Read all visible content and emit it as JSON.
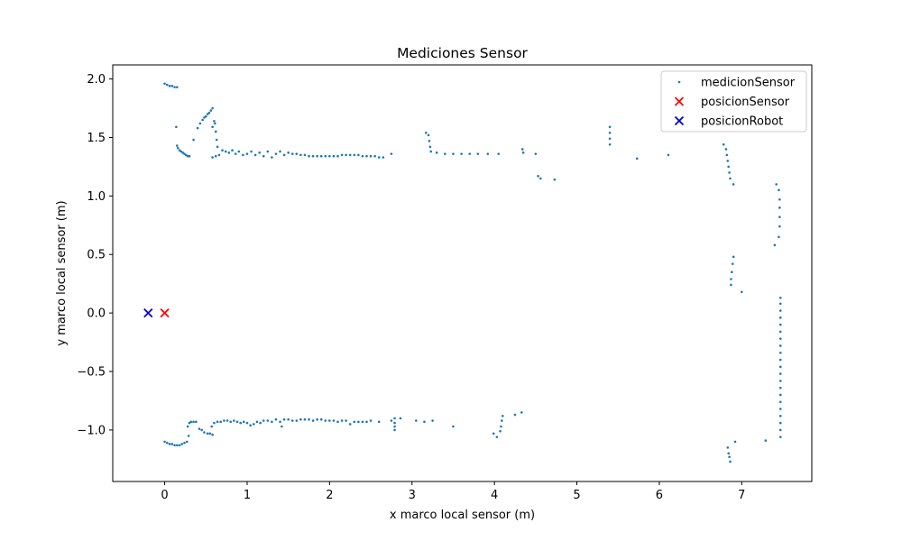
{
  "chart_data": {
    "type": "scatter",
    "title": "Mediciones Sensor",
    "xlabel": "x marco local sensor (m)",
    "ylabel": "y marco local sensor (m)",
    "xlim": [
      -0.63,
      7.85
    ],
    "ylim": [
      -1.44,
      2.12
    ],
    "xticks": [
      0,
      1,
      2,
      3,
      4,
      5,
      6,
      7
    ],
    "xtick_labels": [
      "0",
      "1",
      "2",
      "3",
      "4",
      "5",
      "6",
      "7"
    ],
    "yticks": [
      -1.0,
      -0.5,
      0.0,
      0.5,
      1.0,
      1.5,
      2.0
    ],
    "ytick_labels": [
      "−1.0",
      "−0.5",
      "0.0",
      "0.5",
      "1.0",
      "1.5",
      "2.0"
    ],
    "grid": false,
    "legend_position": "top-right",
    "series": [
      {
        "name": "medicionSensor",
        "marker": "dot",
        "color": "#1f77b4",
        "points": [
          [
            0.0,
            1.96
          ],
          [
            0.03,
            1.95
          ],
          [
            0.06,
            1.94
          ],
          [
            0.09,
            1.94
          ],
          [
            0.12,
            1.93
          ],
          [
            0.15,
            1.93
          ],
          [
            0.14,
            1.59
          ],
          [
            0.15,
            1.43
          ],
          [
            0.16,
            1.41
          ],
          [
            0.18,
            1.39
          ],
          [
            0.2,
            1.38
          ],
          [
            0.22,
            1.37
          ],
          [
            0.24,
            1.36
          ],
          [
            0.26,
            1.35
          ],
          [
            0.28,
            1.34
          ],
          [
            0.3,
            1.34
          ],
          [
            0.35,
            1.48
          ],
          [
            0.4,
            1.58
          ],
          [
            0.43,
            1.62
          ],
          [
            0.46,
            1.65
          ],
          [
            0.48,
            1.67
          ],
          [
            0.5,
            1.68
          ],
          [
            0.52,
            1.7
          ],
          [
            0.54,
            1.71
          ],
          [
            0.56,
            1.73
          ],
          [
            0.58,
            1.75
          ],
          [
            0.58,
            1.59
          ],
          [
            0.6,
            1.64
          ],
          [
            0.61,
            1.62
          ],
          [
            0.62,
            1.55
          ],
          [
            0.63,
            1.48
          ],
          [
            0.64,
            1.42
          ],
          [
            0.58,
            1.33
          ],
          [
            0.62,
            1.34
          ],
          [
            0.66,
            1.35
          ],
          [
            0.7,
            1.39
          ],
          [
            0.74,
            1.38
          ],
          [
            0.78,
            1.37
          ],
          [
            0.82,
            1.39
          ],
          [
            0.86,
            1.36
          ],
          [
            0.9,
            1.38
          ],
          [
            0.95,
            1.35
          ],
          [
            1.0,
            1.36
          ],
          [
            1.05,
            1.38
          ],
          [
            1.1,
            1.35
          ],
          [
            1.15,
            1.37
          ],
          [
            1.2,
            1.34
          ],
          [
            1.25,
            1.38
          ],
          [
            1.3,
            1.33
          ],
          [
            1.35,
            1.36
          ],
          [
            1.4,
            1.38
          ],
          [
            1.45,
            1.35
          ],
          [
            1.5,
            1.37
          ],
          [
            1.55,
            1.36
          ],
          [
            1.6,
            1.36
          ],
          [
            1.65,
            1.35
          ],
          [
            1.7,
            1.35
          ],
          [
            1.75,
            1.34
          ],
          [
            1.8,
            1.34
          ],
          [
            1.85,
            1.34
          ],
          [
            1.9,
            1.34
          ],
          [
            1.95,
            1.34
          ],
          [
            2.0,
            1.34
          ],
          [
            2.05,
            1.34
          ],
          [
            2.1,
            1.34
          ],
          [
            2.15,
            1.35
          ],
          [
            2.2,
            1.35
          ],
          [
            2.25,
            1.35
          ],
          [
            2.3,
            1.35
          ],
          [
            2.35,
            1.35
          ],
          [
            2.4,
            1.34
          ],
          [
            2.45,
            1.34
          ],
          [
            2.5,
            1.34
          ],
          [
            2.55,
            1.34
          ],
          [
            2.6,
            1.33
          ],
          [
            2.65,
            1.33
          ],
          [
            2.75,
            1.36
          ],
          [
            3.17,
            1.54
          ],
          [
            3.2,
            1.52
          ],
          [
            3.21,
            1.47
          ],
          [
            3.22,
            1.42
          ],
          [
            3.23,
            1.38
          ],
          [
            3.3,
            1.37
          ],
          [
            3.4,
            1.36
          ],
          [
            3.5,
            1.36
          ],
          [
            3.6,
            1.36
          ],
          [
            3.7,
            1.36
          ],
          [
            3.8,
            1.36
          ],
          [
            3.92,
            1.36
          ],
          [
            4.05,
            1.36
          ],
          [
            4.34,
            1.4
          ],
          [
            4.35,
            1.37
          ],
          [
            4.5,
            1.36
          ],
          [
            4.53,
            1.17
          ],
          [
            4.56,
            1.15
          ],
          [
            4.73,
            1.14
          ],
          [
            5.4,
            1.59
          ],
          [
            5.4,
            1.54
          ],
          [
            5.4,
            1.49
          ],
          [
            5.4,
            1.44
          ],
          [
            5.73,
            1.32
          ],
          [
            6.11,
            1.35
          ],
          [
            6.78,
            1.44
          ],
          [
            6.81,
            1.4
          ],
          [
            6.82,
            1.35
          ],
          [
            6.83,
            1.3
          ],
          [
            6.84,
            1.25
          ],
          [
            6.85,
            1.2
          ],
          [
            6.86,
            1.15
          ],
          [
            6.9,
            1.1
          ],
          [
            7.42,
            1.1
          ],
          [
            7.45,
            1.05
          ],
          [
            7.46,
            0.97
          ],
          [
            7.46,
            0.9
          ],
          [
            7.46,
            0.82
          ],
          [
            7.46,
            0.74
          ],
          [
            7.45,
            0.65
          ],
          [
            7.4,
            0.58
          ],
          [
            6.9,
            0.48
          ],
          [
            6.89,
            0.42
          ],
          [
            6.88,
            0.35
          ],
          [
            6.87,
            0.29
          ],
          [
            6.87,
            0.24
          ],
          [
            7.0,
            0.18
          ],
          [
            7.47,
            0.13
          ],
          [
            7.47,
            0.08
          ],
          [
            7.47,
            0.02
          ],
          [
            7.47,
            -0.04
          ],
          [
            7.47,
            -0.1
          ],
          [
            7.47,
            -0.16
          ],
          [
            7.47,
            -0.22
          ],
          [
            7.47,
            -0.28
          ],
          [
            7.47,
            -0.34
          ],
          [
            7.47,
            -0.4
          ],
          [
            7.47,
            -0.46
          ],
          [
            7.47,
            -0.52
          ],
          [
            7.47,
            -0.58
          ],
          [
            7.47,
            -0.64
          ],
          [
            7.47,
            -0.7
          ],
          [
            7.47,
            -0.76
          ],
          [
            7.47,
            -0.82
          ],
          [
            7.47,
            -0.88
          ],
          [
            7.47,
            -0.94
          ],
          [
            7.47,
            -1.0
          ],
          [
            7.47,
            -1.06
          ],
          [
            7.29,
            -1.09
          ],
          [
            6.92,
            -1.1
          ],
          [
            6.83,
            -1.15
          ],
          [
            6.84,
            -1.2
          ],
          [
            6.85,
            -1.23
          ],
          [
            6.86,
            -1.27
          ],
          [
            0.0,
            -1.1
          ],
          [
            0.03,
            -1.11
          ],
          [
            0.06,
            -1.12
          ],
          [
            0.09,
            -1.12
          ],
          [
            0.12,
            -1.13
          ],
          [
            0.15,
            -1.13
          ],
          [
            0.18,
            -1.13
          ],
          [
            0.21,
            -1.12
          ],
          [
            0.24,
            -1.11
          ],
          [
            0.27,
            -1.1
          ],
          [
            0.29,
            -1.05
          ],
          [
            0.28,
            -0.97
          ],
          [
            0.3,
            -0.94
          ],
          [
            0.32,
            -0.93
          ],
          [
            0.35,
            -0.93
          ],
          [
            0.38,
            -0.93
          ],
          [
            0.42,
            -0.99
          ],
          [
            0.45,
            -1.0
          ],
          [
            0.48,
            -1.02
          ],
          [
            0.52,
            -1.03
          ],
          [
            0.55,
            -1.03
          ],
          [
            0.58,
            -1.04
          ],
          [
            0.57,
            -0.97
          ],
          [
            0.6,
            -0.94
          ],
          [
            0.64,
            -0.93
          ],
          [
            0.68,
            -0.93
          ],
          [
            0.72,
            -0.92
          ],
          [
            0.76,
            -0.92
          ],
          [
            0.8,
            -0.93
          ],
          [
            0.84,
            -0.92
          ],
          [
            0.88,
            -0.93
          ],
          [
            0.92,
            -0.94
          ],
          [
            0.96,
            -0.93
          ],
          [
            1.0,
            -0.94
          ],
          [
            1.04,
            -0.96
          ],
          [
            1.08,
            -0.95
          ],
          [
            1.12,
            -0.93
          ],
          [
            1.16,
            -0.94
          ],
          [
            1.2,
            -0.92
          ],
          [
            1.25,
            -0.92
          ],
          [
            1.3,
            -0.93
          ],
          [
            1.35,
            -0.91
          ],
          [
            1.4,
            -0.93
          ],
          [
            1.42,
            -0.97
          ],
          [
            1.45,
            -0.91
          ],
          [
            1.5,
            -0.91
          ],
          [
            1.55,
            -0.92
          ],
          [
            1.6,
            -0.92
          ],
          [
            1.65,
            -0.91
          ],
          [
            1.7,
            -0.91
          ],
          [
            1.75,
            -0.91
          ],
          [
            1.8,
            -0.92
          ],
          [
            1.85,
            -0.91
          ],
          [
            1.9,
            -0.91
          ],
          [
            1.95,
            -0.92
          ],
          [
            2.0,
            -0.92
          ],
          [
            2.05,
            -0.92
          ],
          [
            2.1,
            -0.93
          ],
          [
            2.15,
            -0.92
          ],
          [
            2.2,
            -0.92
          ],
          [
            2.25,
            -0.95
          ],
          [
            2.3,
            -0.93
          ],
          [
            2.35,
            -0.93
          ],
          [
            2.4,
            -0.93
          ],
          [
            2.45,
            -0.93
          ],
          [
            2.5,
            -0.92
          ],
          [
            2.6,
            -0.93
          ],
          [
            2.75,
            -0.92
          ],
          [
            2.79,
            -0.9
          ],
          [
            2.79,
            -0.94
          ],
          [
            2.79,
            -0.97
          ],
          [
            2.79,
            -1.0
          ],
          [
            2.86,
            -0.9
          ],
          [
            3.05,
            -0.92
          ],
          [
            3.15,
            -0.93
          ],
          [
            3.25,
            -0.92
          ],
          [
            3.5,
            -0.97
          ],
          [
            3.99,
            -1.03
          ],
          [
            4.03,
            -1.06
          ],
          [
            4.07,
            -1.01
          ],
          [
            4.08,
            -0.97
          ],
          [
            4.09,
            -0.92
          ],
          [
            4.1,
            -0.88
          ],
          [
            4.25,
            -0.87
          ],
          [
            4.33,
            -0.85
          ]
        ]
      },
      {
        "name": "posicionSensor",
        "marker": "x",
        "color": "#ff0000",
        "points": [
          [
            0.0,
            0.0
          ]
        ]
      },
      {
        "name": "posicionRobot",
        "marker": "x",
        "color": "#0000cc",
        "points": [
          [
            -0.2,
            0.0
          ]
        ]
      }
    ]
  }
}
